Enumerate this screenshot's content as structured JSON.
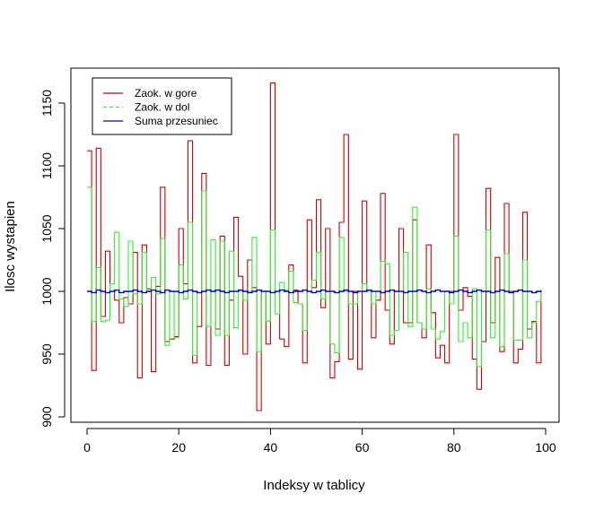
{
  "chart_data": {
    "type": "line",
    "title": "",
    "xlabel": "Indeksy w tablicy",
    "ylabel": "Ilosc wystapien",
    "xlim": [
      -4,
      103
    ],
    "ylim": [
      895,
      1175
    ],
    "xticks": [
      0,
      20,
      40,
      60,
      80,
      100
    ],
    "yticks": [
      900,
      950,
      1000,
      1050,
      1100,
      1150
    ],
    "grid": false,
    "legend_position": "top-left",
    "x": [
      0,
      1,
      2,
      3,
      4,
      5,
      6,
      7,
      8,
      9,
      10,
      11,
      12,
      13,
      14,
      15,
      16,
      17,
      18,
      19,
      20,
      21,
      22,
      23,
      24,
      25,
      26,
      27,
      28,
      29,
      30,
      31,
      32,
      33,
      34,
      35,
      36,
      37,
      38,
      39,
      40,
      41,
      42,
      43,
      44,
      45,
      46,
      47,
      48,
      49,
      50,
      51,
      52,
      53,
      54,
      55,
      56,
      57,
      58,
      59,
      60,
      61,
      62,
      63,
      64,
      65,
      66,
      67,
      68,
      69,
      70,
      71,
      72,
      73,
      74,
      75,
      76,
      77,
      78,
      79,
      80,
      81,
      82,
      83,
      84,
      85,
      86,
      87,
      88,
      89,
      90,
      91,
      92,
      93,
      94,
      95,
      96,
      97,
      98,
      99
    ],
    "series": [
      {
        "name": "Zaok. w gore",
        "color": "#cc0000",
        "dash": "solid",
        "values": [
          1112,
          937,
          1114,
          980,
          1032,
          1000,
          993,
          975,
          995,
          990,
          1031,
          931,
          1037,
          1002,
          936,
          1004,
          1083,
          960,
          962,
          964,
          1050,
          1006,
          1120,
          943,
          972,
          1094,
          941,
          1000,
          970,
          1044,
          941,
          993,
          1059,
          1012,
          950,
          1025,
          1003,
          905,
          1000,
          958,
          1166,
          1000,
          962,
          956,
          1021,
          1001,
          990,
          943,
          1057,
          1003,
          1073,
          987,
          1050,
          931,
          944,
          1055,
          1125,
          946,
          1000,
          938,
          1072,
          1000,
          963,
          993,
          1078,
          985,
          958,
          1000,
          1050,
          975,
          975,
          1057,
          975,
          963,
          1037,
          983,
          947,
          957,
          943,
          1000,
          1125,
          985,
          1003,
          996,
          946,
          922,
          960,
          1082,
          975,
          1027,
          952,
          1070,
          1000,
          943,
          954,
          1063,
          970,
          976,
          943,
          1000
        ],
        "step_values": [
          1112,
          937,
          1114,
          980,
          1032,
          1000,
          993,
          975,
          995,
          990,
          1031,
          931,
          1037,
          1002,
          936,
          1004,
          1083,
          960,
          962,
          964,
          1050,
          1006,
          1120,
          943,
          972,
          1094,
          941,
          1000,
          970,
          1044,
          941,
          993,
          1059,
          1012,
          950,
          1025,
          1003,
          905,
          1000,
          958,
          1166,
          1000,
          962,
          956,
          1021,
          1001,
          990,
          943,
          1057,
          1003,
          1073,
          987,
          1050,
          931,
          944,
          1055,
          1125,
          946,
          1000,
          938,
          1072,
          1000,
          963,
          993,
          1078,
          985,
          958,
          1000,
          1050,
          975,
          975,
          1057,
          975,
          963,
          1037,
          983,
          947,
          957,
          943,
          1000,
          1125,
          985,
          1003,
          996,
          946,
          922,
          960,
          1082,
          975,
          1027,
          952,
          1070,
          1000,
          943,
          954,
          1063,
          970,
          976,
          943
        ]
      },
      {
        "name": "Zaok. w dol",
        "color": "#33ee33",
        "dash": "dashed",
        "values": [
          1083,
          976,
          1019,
          976,
          977,
          1006,
          1047,
          994,
          988,
          1040,
          998,
          990,
          1031,
          1000,
          1011,
          998,
          1042,
          957,
          1000,
          963,
          1021,
          994,
          1055,
          949,
          999,
          1080,
          972,
          1041,
          965,
          1040,
          965,
          1032,
          971,
          1000,
          993,
          1000,
          1043,
          952,
          1000,
          976,
          1049,
          982,
          1007,
          1001,
          1016,
          991,
          990,
          969,
          1000,
          1009,
          1031,
          994,
          1000,
          958,
          951,
          1043,
          1000,
          990,
          990,
          1000,
          1006,
          1000,
          990,
          1000,
          1024,
          1022,
          965,
          969,
          1000,
          1031,
          972,
          1067,
          975,
          970,
          1002,
          970,
          962,
          968,
          1000,
          990,
          1044,
          960,
          975,
          963,
          1002,
          940,
          1000,
          1049,
          963,
          1000,
          956,
          1030,
          999,
          961,
          961,
          1025,
          963,
          975,
          992,
          1000
        ],
        "step_values": [
          1083,
          976,
          1019,
          976,
          977,
          1006,
          1047,
          994,
          988,
          1040,
          998,
          990,
          1031,
          1000,
          1011,
          998,
          1042,
          957,
          1000,
          963,
          1021,
          994,
          1055,
          949,
          999,
          1080,
          972,
          1041,
          965,
          1040,
          965,
          1032,
          971,
          1000,
          993,
          1000,
          1043,
          952,
          1000,
          976,
          1049,
          982,
          1007,
          1001,
          1016,
          991,
          990,
          969,
          1000,
          1009,
          1031,
          994,
          1000,
          958,
          951,
          1043,
          1000,
          990,
          990,
          1000,
          1006,
          1000,
          990,
          1000,
          1024,
          1022,
          965,
          969,
          1000,
          1031,
          972,
          1067,
          975,
          970,
          1002,
          970,
          962,
          968,
          1000,
          990,
          1044,
          960,
          975,
          963,
          1002,
          940,
          1000,
          1049,
          963,
          1000,
          956,
          1030,
          999,
          961,
          961,
          1025,
          963,
          975,
          992
        ]
      },
      {
        "name": "Suma przesuniec",
        "color": "#0000cc",
        "dash": "solid",
        "values": [
          1000,
          999,
          1001,
          1000,
          999,
          1000,
          1001,
          999,
          1000,
          1000,
          1001,
          1000,
          999,
          1000,
          1001,
          1000,
          999,
          1001,
          1000,
          1000,
          999,
          1000,
          1001,
          1000,
          999,
          1000,
          1001,
          1000,
          1001,
          1000,
          999,
          1000,
          1000,
          1001,
          1000,
          999,
          1000,
          1001,
          1000,
          1000,
          999,
          1000,
          1001,
          1000,
          999,
          1000,
          1000,
          1001,
          1000,
          999,
          1000,
          1001,
          1000,
          1000,
          999,
          1000,
          1001,
          1000,
          999,
          1000,
          1000,
          1001,
          1000,
          1000,
          999,
          1000,
          1001,
          1000,
          1000,
          999,
          1000,
          1000,
          1001,
          1000,
          999,
          1000,
          1001,
          1000,
          1000,
          999,
          1000,
          1001,
          1000,
          999,
          1000,
          1001,
          1000,
          1000,
          999,
          1000,
          1001,
          1000,
          999,
          1000,
          1001,
          1000,
          1000,
          999,
          1000,
          1001
        ],
        "step_values": [
          1000,
          999,
          1001,
          1000,
          999,
          1000,
          1001,
          999,
          1000,
          1000,
          1001,
          1000,
          999,
          1000,
          1001,
          1000,
          999,
          1001,
          1000,
          1000,
          999,
          1000,
          1001,
          1000,
          999,
          1000,
          1001,
          1000,
          1001,
          1000,
          999,
          1000,
          1000,
          1001,
          1000,
          999,
          1000,
          1001,
          1000,
          1000,
          999,
          1000,
          1001,
          1000,
          999,
          1000,
          1000,
          1001,
          1000,
          999,
          1000,
          1001,
          1000,
          1000,
          999,
          1000,
          1001,
          1000,
          999,
          1000,
          1000,
          1001,
          1000,
          1000,
          999,
          1000,
          1001,
          1000,
          1000,
          999,
          1000,
          1000,
          1001,
          1000,
          999,
          1000,
          1001,
          1000,
          1000,
          999,
          1000,
          1001,
          1000,
          999,
          1000,
          1001,
          1000,
          1000,
          999,
          1000,
          1001,
          1000,
          999,
          1000,
          1001,
          1000,
          1000,
          999,
          1000
        ]
      }
    ]
  }
}
